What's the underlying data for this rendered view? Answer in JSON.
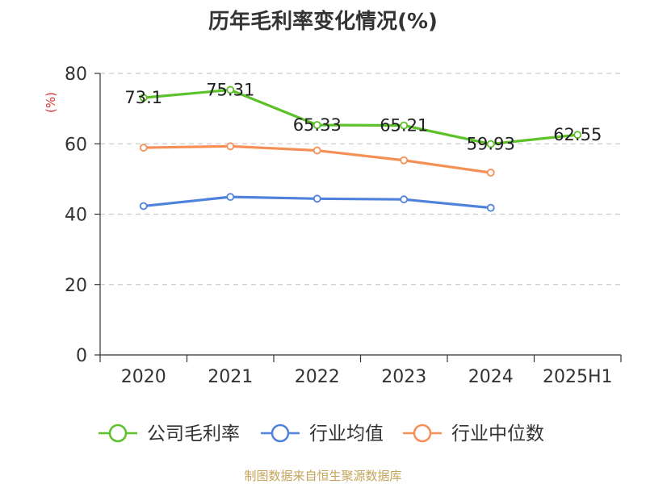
{
  "title": "历年毛利率变化情况(%)",
  "footer": "制图数据来自恒生聚源数据库",
  "colors": {
    "company": "#5dc12a",
    "industry_avg": "#4f82dc",
    "industry_median": "#f58f56",
    "grid": "#cccccc",
    "axis": "#333333"
  },
  "chart_data": {
    "type": "line",
    "title": "历年毛利率变化情况(%)",
    "ylabel": "(%)",
    "categories": [
      "2020",
      "2021",
      "2022",
      "2023",
      "2024",
      "2025H1"
    ],
    "ylim": [
      0,
      80
    ],
    "yticks": [
      0,
      20,
      40,
      60,
      80
    ],
    "grid": true,
    "legend_position": "bottom",
    "series": [
      {
        "name": "公司毛利率",
        "values": [
          73.1,
          75.31,
          65.33,
          65.21,
          59.93,
          62.55
        ],
        "labels": [
          "73.1",
          "75.31",
          "65.33",
          "65.21",
          "59.93",
          "62.55"
        ]
      },
      {
        "name": "行业均值",
        "values": [
          42.3,
          44.9,
          44.4,
          44.2,
          41.8,
          null
        ]
      },
      {
        "name": "行业中位数",
        "values": [
          58.9,
          59.3,
          58.1,
          55.3,
          51.8,
          null
        ]
      }
    ]
  }
}
